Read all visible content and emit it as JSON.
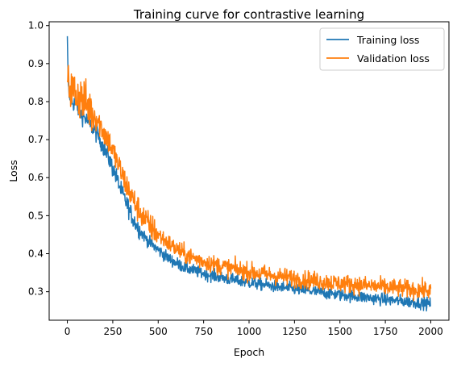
{
  "chart_data": {
    "type": "line",
    "title": "Training curve for contrastive learning",
    "xlabel": "Epoch",
    "ylabel": "Loss",
    "xlim": [
      -100,
      2100
    ],
    "ylim": [
      0.225,
      1.01
    ],
    "x_ticks": [
      0,
      250,
      500,
      750,
      1000,
      1250,
      1500,
      1750,
      2000
    ],
    "y_ticks": [
      0.3,
      0.4,
      0.5,
      0.6,
      0.7,
      0.8,
      0.9,
      1.0
    ],
    "x_tick_labels": [
      "0",
      "250",
      "500",
      "750",
      "1000",
      "1250",
      "1500",
      "1750",
      "2000"
    ],
    "y_tick_labels": [
      "0.3",
      "0.4",
      "0.5",
      "0.6",
      "0.7",
      "0.8",
      "0.9",
      "1.0"
    ],
    "grid": false,
    "legend_position": "top-right",
    "series": [
      {
        "name": "Training loss",
        "color": "#1f77b4",
        "x": [
          0,
          5,
          10,
          25,
          50,
          75,
          100,
          125,
          150,
          175,
          200,
          225,
          250,
          275,
          300,
          325,
          350,
          375,
          400,
          450,
          500,
          550,
          600,
          650,
          700,
          750,
          800,
          850,
          900,
          950,
          1000,
          1100,
          1200,
          1300,
          1400,
          1500,
          1600,
          1700,
          1800,
          1900,
          2000
        ],
        "values": [
          0.972,
          0.84,
          0.815,
          0.8,
          0.79,
          0.77,
          0.755,
          0.74,
          0.725,
          0.705,
          0.68,
          0.655,
          0.625,
          0.595,
          0.56,
          0.535,
          0.505,
          0.48,
          0.46,
          0.43,
          0.41,
          0.39,
          0.375,
          0.363,
          0.355,
          0.348,
          0.342,
          0.337,
          0.332,
          0.328,
          0.324,
          0.317,
          0.31,
          0.304,
          0.298,
          0.292,
          0.287,
          0.282,
          0.277,
          0.273,
          0.268
        ]
      },
      {
        "name": "Validation loss",
        "color": "#ff7f0e",
        "x": [
          0,
          10,
          25,
          50,
          75,
          100,
          125,
          150,
          175,
          200,
          225,
          250,
          275,
          300,
          325,
          350,
          375,
          400,
          450,
          500,
          550,
          600,
          650,
          700,
          750,
          800,
          850,
          900,
          950,
          1000,
          1100,
          1200,
          1300,
          1400,
          1500,
          1600,
          1700,
          1800,
          1900,
          2000
        ],
        "values": [
          0.855,
          0.84,
          0.83,
          0.82,
          0.81,
          0.795,
          0.78,
          0.765,
          0.745,
          0.72,
          0.7,
          0.67,
          0.64,
          0.61,
          0.58,
          0.555,
          0.53,
          0.51,
          0.475,
          0.45,
          0.43,
          0.412,
          0.398,
          0.388,
          0.38,
          0.373,
          0.367,
          0.362,
          0.357,
          0.352,
          0.345,
          0.338,
          0.332,
          0.327,
          0.322,
          0.318,
          0.314,
          0.31,
          0.306,
          0.303
        ]
      }
    ]
  }
}
